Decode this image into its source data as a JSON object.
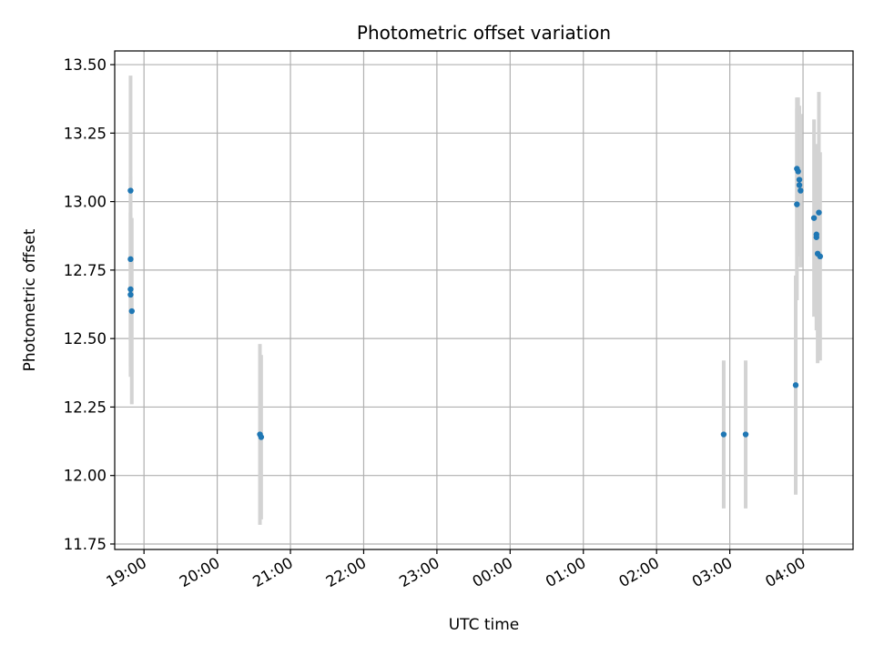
{
  "chart_data": {
    "type": "scatter",
    "title": "Photometric offset variation",
    "xlabel": "UTC time",
    "ylabel": "Photometric offset",
    "grid": true,
    "x_ticks": [
      "19:00",
      "20:00",
      "21:00",
      "22:00",
      "23:00",
      "00:00",
      "01:00",
      "02:00",
      "03:00",
      "04:00"
    ],
    "y_ticks": [
      "11.75",
      "12.00",
      "12.25",
      "12.50",
      "12.75",
      "13.00",
      "13.25",
      "13.50"
    ],
    "xlim": [
      "18:36",
      "04:41"
    ],
    "ylim": [
      11.73,
      13.55
    ],
    "colors": {
      "points": "#1f77b4",
      "errorbars": "#d3d3d3",
      "grid": "#b0b0b0"
    },
    "series": [
      {
        "points": [
          {
            "x": "18:49",
            "y": 13.04,
            "err": 0.42
          },
          {
            "x": "18:49",
            "y": 12.79,
            "err": 0.3
          },
          {
            "x": "18:49",
            "y": 12.68,
            "err": 0.28
          },
          {
            "x": "18:49",
            "y": 12.66,
            "err": 0.3
          },
          {
            "x": "18:50",
            "y": 12.6,
            "err": 0.34
          },
          {
            "x": "20:35",
            "y": 12.15,
            "err": 0.33
          },
          {
            "x": "20:36",
            "y": 12.14,
            "err": 0.3
          },
          {
            "x": "02:55",
            "y": 12.15,
            "err": 0.27
          },
          {
            "x": "03:13",
            "y": 12.15,
            "err": 0.27
          },
          {
            "x": "03:54",
            "y": 12.33,
            "err": 0.4
          },
          {
            "x": "03:55",
            "y": 12.99,
            "err": 0.35
          },
          {
            "x": "03:55",
            "y": 13.12,
            "err": 0.26
          },
          {
            "x": "03:56",
            "y": 13.11,
            "err": 0.27
          },
          {
            "x": "03:57",
            "y": 13.08,
            "err": 0.27
          },
          {
            "x": "03:57",
            "y": 13.06,
            "err": 0.26
          },
          {
            "x": "03:58",
            "y": 13.04,
            "err": 0.28
          },
          {
            "x": "04:09",
            "y": 12.94,
            "err": 0.36
          },
          {
            "x": "04:11",
            "y": 12.88,
            "err": 0.3
          },
          {
            "x": "04:11",
            "y": 12.87,
            "err": 0.34
          },
          {
            "x": "04:12",
            "y": 12.81,
            "err": 0.4
          },
          {
            "x": "04:13",
            "y": 12.96,
            "err": 0.44
          },
          {
            "x": "04:14",
            "y": 12.8,
            "err": 0.38
          }
        ]
      }
    ]
  }
}
